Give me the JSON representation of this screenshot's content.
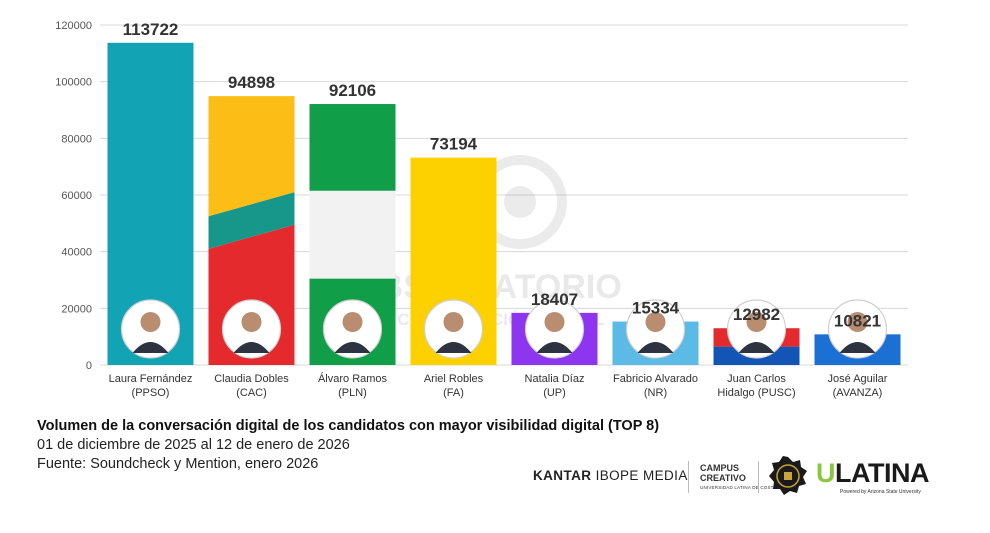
{
  "chart_data": {
    "type": "bar",
    "ylim": [
      0,
      120000
    ],
    "yticks": [
      0,
      20000,
      40000,
      60000,
      80000,
      100000,
      120000
    ],
    "grid": true,
    "categories": [
      {
        "name": "Laura Fernández",
        "party": "(PPSO)",
        "value": 113722,
        "colors": [
          "#12a4b5"
        ]
      },
      {
        "name": "Claudia Dobles",
        "party": "(CAC)",
        "value": 94898,
        "colors": [
          "#e52a2e",
          "#17968a",
          "#fbbd16"
        ]
      },
      {
        "name": "Álvaro Ramos",
        "party": "(PLN)",
        "value": 92106,
        "colors": [
          "#119e48",
          "#f2f2f2",
          "#119e48"
        ]
      },
      {
        "name": "Ariel Robles",
        "party": "(FA)",
        "value": 73194,
        "colors": [
          "#fdd000"
        ]
      },
      {
        "name": "Natalia Díaz",
        "party": "(UP)",
        "value": 18407,
        "colors": [
          "#8e35f0"
        ]
      },
      {
        "name": "Fabricio Alvarado",
        "party": "(NR)",
        "value": 15334,
        "colors": [
          "#5bbbe6"
        ]
      },
      {
        "name": "Juan Carlos",
        "party": "Hidalgo (PUSC)",
        "value": 12982,
        "colors": [
          "#1255b5",
          "#e52a2e"
        ]
      },
      {
        "name": "José Aguilar",
        "party": "(AVANZA)",
        "value": 10821,
        "colors": [
          "#1c6fd3"
        ]
      }
    ]
  },
  "caption": {
    "title": "Volumen de la conversación digital de los candidatos con mayor visibilidad digital (TOP 8)",
    "period": "01 de diciembre de 2025 al 12 de enero de 2026",
    "source": "Fuente: Soundcheck y Mention, enero 2026"
  },
  "watermark": {
    "line1": "OBSERVATORIO",
    "line2": "DE COMUNICACIÓN DIGITAL"
  },
  "logos": {
    "kantar_bold": "KANTAR",
    "kantar_rest": "IBOPE MEDIA",
    "campus_line1": "CAMPUS",
    "campus_line2": "CREATIVO",
    "campus_sub": "UNIVERSIDAD LATINA DE COSTA RICA",
    "ulatina_u": "U",
    "ulatina_rest": "LATINA",
    "ulatina_sub": "Powered by Arizona State University"
  }
}
